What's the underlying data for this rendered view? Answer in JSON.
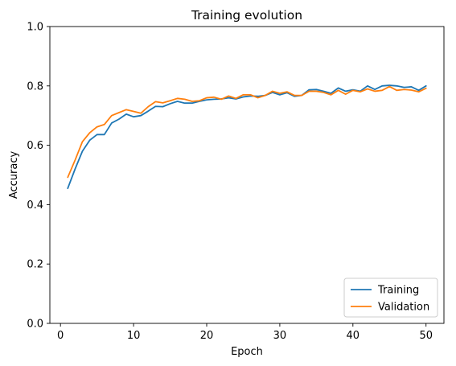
{
  "chart_data": {
    "type": "line",
    "title": "Training evolution",
    "xlabel": "Epoch",
    "ylabel": "Accuracy",
    "xlim": [
      -1.45,
      52.45
    ],
    "ylim": [
      0.0,
      1.0
    ],
    "xticks": [
      0,
      10,
      20,
      30,
      40,
      50
    ],
    "yticks": [
      0.0,
      0.2,
      0.4,
      0.6,
      0.8,
      1.0
    ],
    "ytick_labels": [
      "0.0",
      "0.2",
      "0.4",
      "0.6",
      "0.8",
      "1.0"
    ],
    "grid": false,
    "legend_position": "bottom-right",
    "x": [
      1,
      2,
      3,
      4,
      5,
      6,
      7,
      8,
      9,
      10,
      11,
      12,
      13,
      14,
      15,
      16,
      17,
      18,
      19,
      20,
      21,
      22,
      23,
      24,
      25,
      26,
      27,
      28,
      29,
      30,
      31,
      32,
      33,
      34,
      35,
      36,
      37,
      38,
      39,
      40,
      41,
      42,
      43,
      44,
      45,
      46,
      47,
      48,
      49,
      50
    ],
    "series": [
      {
        "name": "Training",
        "color": "#1f77b4",
        "values": [
          0.455,
          0.52,
          0.58,
          0.617,
          0.636,
          0.636,
          0.675,
          0.688,
          0.705,
          0.696,
          0.7,
          0.715,
          0.731,
          0.73,
          0.74,
          0.748,
          0.742,
          0.742,
          0.748,
          0.753,
          0.755,
          0.756,
          0.76,
          0.756,
          0.763,
          0.766,
          0.765,
          0.768,
          0.778,
          0.77,
          0.777,
          0.765,
          0.768,
          0.787,
          0.788,
          0.782,
          0.775,
          0.793,
          0.782,
          0.787,
          0.782,
          0.8,
          0.788,
          0.8,
          0.802,
          0.8,
          0.795,
          0.797,
          0.785,
          0.8
        ]
      },
      {
        "name": "Validation",
        "color": "#ff7f0e",
        "values": [
          0.492,
          0.55,
          0.612,
          0.642,
          0.662,
          0.67,
          0.7,
          0.71,
          0.72,
          0.714,
          0.708,
          0.73,
          0.747,
          0.743,
          0.75,
          0.758,
          0.755,
          0.748,
          0.75,
          0.76,
          0.762,
          0.755,
          0.766,
          0.758,
          0.77,
          0.77,
          0.76,
          0.768,
          0.782,
          0.775,
          0.78,
          0.768,
          0.768,
          0.782,
          0.782,
          0.778,
          0.77,
          0.785,
          0.772,
          0.785,
          0.78,
          0.79,
          0.782,
          0.785,
          0.798,
          0.785,
          0.788,
          0.786,
          0.78,
          0.792
        ]
      }
    ]
  }
}
